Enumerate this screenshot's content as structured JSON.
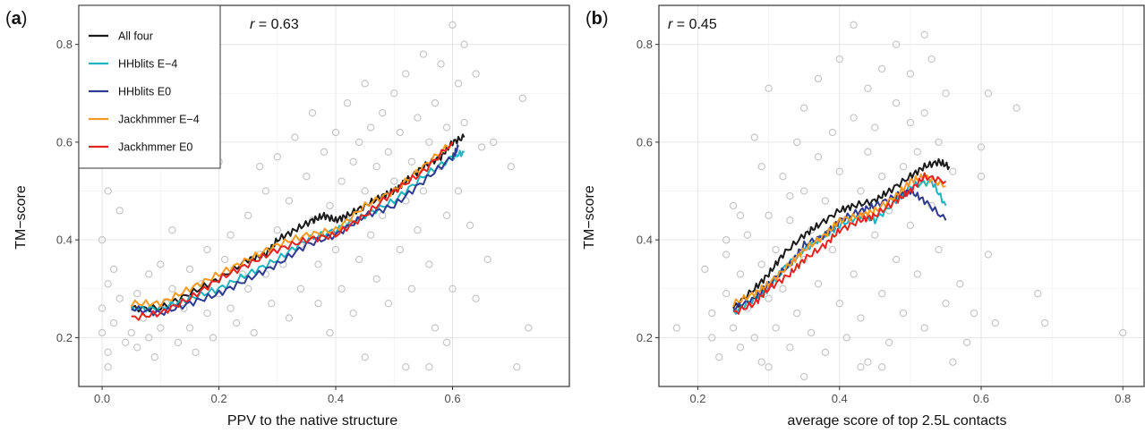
{
  "chart_data": [
    {
      "panel": "(a)",
      "panel_open": "(",
      "panel_letter": "a",
      "panel_close": ")",
      "type": "scatter",
      "r_label": "r = 0.63",
      "r_symbol": "r",
      "r_value": "= 0.63",
      "xlabel": "PPV to the native structure",
      "ylabel": "TM−score",
      "xlim": [
        -0.04,
        0.8
      ],
      "ylim": [
        0.1,
        0.88
      ],
      "xticks": [
        0.0,
        0.2,
        0.4,
        0.6
      ],
      "xtick_labels": [
        "0.0",
        "0.2",
        "0.4",
        "0.6"
      ],
      "yticks": [
        0.2,
        0.4,
        0.6,
        0.8
      ],
      "ytick_labels": [
        "0.2",
        "0.4",
        "0.6",
        "0.8"
      ],
      "grid": true,
      "legend_position": "top-left",
      "legend": [
        "All four",
        "HHblits E−4",
        "HHblits E0",
        "Jackhmmer E−4",
        "Jackhmmer E0"
      ],
      "series": [
        {
          "name": "All four",
          "color": "#1a1a1a",
          "x": [
            0.05,
            0.1,
            0.15,
            0.2,
            0.25,
            0.28,
            0.3,
            0.33,
            0.36,
            0.38,
            0.4,
            0.42,
            0.45,
            0.48,
            0.5,
            0.52,
            0.55,
            0.58,
            0.6,
            0.62
          ],
          "y": [
            0.26,
            0.26,
            0.29,
            0.32,
            0.36,
            0.37,
            0.4,
            0.42,
            0.44,
            0.45,
            0.44,
            0.45,
            0.47,
            0.49,
            0.5,
            0.52,
            0.55,
            0.57,
            0.6,
            0.61
          ]
        },
        {
          "name": "HHblits E−4",
          "color": "#1fb3bd",
          "x": [
            0.05,
            0.1,
            0.15,
            0.2,
            0.25,
            0.3,
            0.35,
            0.4,
            0.45,
            0.5,
            0.55,
            0.6,
            0.62
          ],
          "y": [
            0.26,
            0.26,
            0.28,
            0.3,
            0.33,
            0.36,
            0.4,
            0.42,
            0.45,
            0.48,
            0.53,
            0.57,
            0.58
          ]
        },
        {
          "name": "HHblits E0",
          "color": "#2e3b8f",
          "x": [
            0.05,
            0.1,
            0.15,
            0.2,
            0.25,
            0.3,
            0.35,
            0.4,
            0.45,
            0.5,
            0.55,
            0.6,
            0.61
          ],
          "y": [
            0.26,
            0.25,
            0.27,
            0.29,
            0.32,
            0.35,
            0.39,
            0.41,
            0.45,
            0.47,
            0.52,
            0.57,
            0.59
          ]
        },
        {
          "name": "Jackhmmer E−4",
          "color": "#f59a23",
          "x": [
            0.05,
            0.1,
            0.15,
            0.2,
            0.25,
            0.3,
            0.35,
            0.4,
            0.45,
            0.5,
            0.55,
            0.6
          ],
          "y": [
            0.27,
            0.27,
            0.3,
            0.33,
            0.36,
            0.39,
            0.41,
            0.42,
            0.47,
            0.5,
            0.55,
            0.6
          ]
        },
        {
          "name": "Jackhmmer E0",
          "color": "#e52421",
          "x": [
            0.05,
            0.1,
            0.15,
            0.2,
            0.25,
            0.3,
            0.35,
            0.4,
            0.45,
            0.5,
            0.55,
            0.6
          ],
          "y": [
            0.24,
            0.25,
            0.28,
            0.32,
            0.35,
            0.38,
            0.4,
            0.41,
            0.45,
            0.5,
            0.54,
            0.6
          ]
        }
      ],
      "points": [
        [
          0.0,
          0.4
        ],
        [
          0.0,
          0.26
        ],
        [
          0.01,
          0.17
        ],
        [
          0.0,
          0.21
        ],
        [
          0.01,
          0.31
        ],
        [
          0.02,
          0.34
        ],
        [
          0.02,
          0.23
        ],
        [
          0.03,
          0.28
        ],
        [
          0.01,
          0.14
        ],
        [
          0.04,
          0.19
        ],
        [
          0.05,
          0.21
        ],
        [
          0.06,
          0.18
        ],
        [
          0.07,
          0.24
        ],
        [
          0.08,
          0.2
        ],
        [
          0.09,
          0.16
        ],
        [
          0.1,
          0.22
        ],
        [
          0.11,
          0.27
        ],
        [
          0.12,
          0.3
        ],
        [
          0.13,
          0.19
        ],
        [
          0.14,
          0.26
        ],
        [
          0.15,
          0.34
        ],
        [
          0.15,
          0.22
        ],
        [
          0.16,
          0.17
        ],
        [
          0.17,
          0.31
        ],
        [
          0.18,
          0.38
        ],
        [
          0.18,
          0.25
        ],
        [
          0.19,
          0.2
        ],
        [
          0.2,
          0.29
        ],
        [
          0.21,
          0.36
        ],
        [
          0.22,
          0.41
        ],
        [
          0.22,
          0.26
        ],
        [
          0.23,
          0.23
        ],
        [
          0.24,
          0.33
        ],
        [
          0.25,
          0.45
        ],
        [
          0.25,
          0.3
        ],
        [
          0.26,
          0.21
        ],
        [
          0.27,
          0.37
        ],
        [
          0.28,
          0.5
        ],
        [
          0.28,
          0.33
        ],
        [
          0.29,
          0.27
        ],
        [
          0.3,
          0.42
        ],
        [
          0.3,
          0.57
        ],
        [
          0.31,
          0.35
        ],
        [
          0.32,
          0.24
        ],
        [
          0.32,
          0.48
        ],
        [
          0.33,
          0.61
        ],
        [
          0.34,
          0.39
        ],
        [
          0.34,
          0.3
        ],
        [
          0.35,
          0.53
        ],
        [
          0.36,
          0.66
        ],
        [
          0.36,
          0.44
        ],
        [
          0.37,
          0.27
        ],
        [
          0.37,
          0.35
        ],
        [
          0.38,
          0.58
        ],
        [
          0.39,
          0.47
        ],
        [
          0.39,
          0.21
        ],
        [
          0.4,
          0.62
        ],
        [
          0.4,
          0.38
        ],
        [
          0.41,
          0.52
        ],
        [
          0.41,
          0.3
        ],
        [
          0.42,
          0.68
        ],
        [
          0.42,
          0.44
        ],
        [
          0.43,
          0.56
        ],
        [
          0.43,
          0.25
        ],
        [
          0.44,
          0.6
        ],
        [
          0.44,
          0.36
        ],
        [
          0.45,
          0.5
        ],
        [
          0.45,
          0.72
        ],
        [
          0.46,
          0.41
        ],
        [
          0.46,
          0.63
        ],
        [
          0.47,
          0.55
        ],
        [
          0.47,
          0.32
        ],
        [
          0.48,
          0.66
        ],
        [
          0.48,
          0.45
        ],
        [
          0.49,
          0.58
        ],
        [
          0.49,
          0.27
        ],
        [
          0.5,
          0.7
        ],
        [
          0.5,
          0.52
        ],
        [
          0.51,
          0.38
        ],
        [
          0.51,
          0.62
        ],
        [
          0.52,
          0.74
        ],
        [
          0.52,
          0.48
        ],
        [
          0.53,
          0.56
        ],
        [
          0.53,
          0.3
        ],
        [
          0.54,
          0.65
        ],
        [
          0.54,
          0.42
        ],
        [
          0.55,
          0.78
        ],
        [
          0.55,
          0.5
        ],
        [
          0.56,
          0.6
        ],
        [
          0.56,
          0.35
        ],
        [
          0.57,
          0.68
        ],
        [
          0.57,
          0.22
        ],
        [
          0.58,
          0.55
        ],
        [
          0.58,
          0.76
        ],
        [
          0.59,
          0.45
        ],
        [
          0.59,
          0.63
        ],
        [
          0.6,
          0.84
        ],
        [
          0.6,
          0.3
        ],
        [
          0.61,
          0.72
        ],
        [
          0.61,
          0.5
        ],
        [
          0.62,
          0.8
        ],
        [
          0.62,
          0.64
        ],
        [
          0.63,
          0.43
        ],
        [
          0.64,
          0.74
        ],
        [
          0.64,
          0.28
        ],
        [
          0.65,
          0.59
        ],
        [
          0.66,
          0.36
        ],
        [
          0.67,
          0.6
        ],
        [
          0.7,
          0.55
        ],
        [
          0.71,
          0.14
        ],
        [
          0.72,
          0.69
        ],
        [
          0.73,
          0.22
        ],
        [
          0.56,
          0.14
        ],
        [
          0.59,
          0.19
        ],
        [
          0.52,
          0.14
        ],
        [
          0.45,
          0.16
        ],
        [
          0.08,
          0.33
        ],
        [
          0.1,
          0.35
        ],
        [
          0.06,
          0.29
        ],
        [
          0.03,
          0.46
        ],
        [
          0.01,
          0.5
        ],
        [
          0.2,
          0.56
        ],
        [
          0.27,
          0.55
        ],
        [
          0.12,
          0.42
        ]
      ]
    },
    {
      "panel": "(b)",
      "panel_open": "(",
      "panel_letter": "b",
      "panel_close": ")",
      "type": "scatter",
      "r_label": "r = 0.45",
      "r_symbol": "r",
      "r_value": "= 0.45",
      "xlabel": "average score of top 2.5L contacts",
      "ylabel": "TM−score",
      "xlim": [
        0.145,
        0.83
      ],
      "ylim": [
        0.1,
        0.88
      ],
      "xticks": [
        0.2,
        0.4,
        0.6,
        0.8
      ],
      "xtick_labels": [
        "0.2",
        "0.4",
        "0.6",
        "0.8"
      ],
      "yticks": [
        0.2,
        0.4,
        0.6,
        0.8
      ],
      "ytick_labels": [
        "0.2",
        "0.4",
        "0.6",
        "0.8"
      ],
      "grid": true,
      "series": [
        {
          "name": "All four",
          "color": "#1a1a1a",
          "x": [
            0.25,
            0.28,
            0.3,
            0.32,
            0.35,
            0.37,
            0.4,
            0.42,
            0.45,
            0.47,
            0.5,
            0.52,
            0.54,
            0.555
          ],
          "y": [
            0.26,
            0.3,
            0.33,
            0.37,
            0.41,
            0.43,
            0.46,
            0.47,
            0.48,
            0.5,
            0.53,
            0.55,
            0.56,
            0.55
          ]
        },
        {
          "name": "HHblits E−4",
          "color": "#1fb3bd",
          "x": [
            0.25,
            0.28,
            0.3,
            0.32,
            0.35,
            0.38,
            0.4,
            0.43,
            0.45,
            0.48,
            0.5,
            0.53,
            0.55
          ],
          "y": [
            0.25,
            0.28,
            0.3,
            0.34,
            0.38,
            0.41,
            0.43,
            0.45,
            0.44,
            0.48,
            0.51,
            0.52,
            0.47
          ]
        },
        {
          "name": "HHblits E0",
          "color": "#2e3b8f",
          "x": [
            0.25,
            0.28,
            0.3,
            0.33,
            0.35,
            0.38,
            0.4,
            0.43,
            0.45,
            0.48,
            0.5,
            0.52,
            0.55
          ],
          "y": [
            0.26,
            0.28,
            0.31,
            0.35,
            0.39,
            0.41,
            0.44,
            0.46,
            0.47,
            0.49,
            0.5,
            0.48,
            0.44
          ]
        },
        {
          "name": "Jackhmmer E−4",
          "color": "#f59a23",
          "x": [
            0.25,
            0.28,
            0.3,
            0.33,
            0.35,
            0.38,
            0.4,
            0.43,
            0.45,
            0.48,
            0.5,
            0.52,
            0.55
          ],
          "y": [
            0.27,
            0.29,
            0.31,
            0.35,
            0.38,
            0.41,
            0.44,
            0.45,
            0.46,
            0.49,
            0.52,
            0.53,
            0.51
          ]
        },
        {
          "name": "Jackhmmer E0",
          "color": "#e52421",
          "x": [
            0.25,
            0.28,
            0.3,
            0.33,
            0.35,
            0.38,
            0.4,
            0.43,
            0.45,
            0.48,
            0.5,
            0.52,
            0.55
          ],
          "y": [
            0.25,
            0.27,
            0.3,
            0.33,
            0.36,
            0.39,
            0.42,
            0.44,
            0.45,
            0.48,
            0.5,
            0.53,
            0.52
          ]
        }
      ],
      "points": [
        [
          0.17,
          0.22
        ],
        [
          0.21,
          0.34
        ],
        [
          0.22,
          0.25
        ],
        [
          0.22,
          0.2
        ],
        [
          0.23,
          0.16
        ],
        [
          0.24,
          0.37
        ],
        [
          0.24,
          0.29
        ],
        [
          0.25,
          0.22
        ],
        [
          0.25,
          0.47
        ],
        [
          0.26,
          0.18
        ],
        [
          0.26,
          0.33
        ],
        [
          0.27,
          0.26
        ],
        [
          0.27,
          0.41
        ],
        [
          0.28,
          0.2
        ],
        [
          0.28,
          0.61
        ],
        [
          0.29,
          0.35
        ],
        [
          0.29,
          0.15
        ],
        [
          0.3,
          0.28
        ],
        [
          0.3,
          0.45
        ],
        [
          0.3,
          0.71
        ],
        [
          0.31,
          0.22
        ],
        [
          0.31,
          0.38
        ],
        [
          0.32,
          0.53
        ],
        [
          0.32,
          0.3
        ],
        [
          0.33,
          0.18
        ],
        [
          0.33,
          0.44
        ],
        [
          0.34,
          0.6
        ],
        [
          0.34,
          0.25
        ],
        [
          0.35,
          0.36
        ],
        [
          0.35,
          0.5
        ],
        [
          0.35,
          0.67
        ],
        [
          0.36,
          0.21
        ],
        [
          0.36,
          0.42
        ],
        [
          0.37,
          0.57
        ],
        [
          0.37,
          0.31
        ],
        [
          0.37,
          0.73
        ],
        [
          0.38,
          0.48
        ],
        [
          0.38,
          0.17
        ],
        [
          0.39,
          0.62
        ],
        [
          0.39,
          0.38
        ],
        [
          0.4,
          0.27
        ],
        [
          0.4,
          0.54
        ],
        [
          0.4,
          0.77
        ],
        [
          0.41,
          0.44
        ],
        [
          0.41,
          0.2
        ],
        [
          0.42,
          0.65
        ],
        [
          0.42,
          0.33
        ],
        [
          0.42,
          0.84
        ],
        [
          0.43,
          0.5
        ],
        [
          0.43,
          0.24
        ],
        [
          0.44,
          0.58
        ],
        [
          0.44,
          0.71
        ],
        [
          0.44,
          0.15
        ],
        [
          0.45,
          0.41
        ],
        [
          0.45,
          0.63
        ],
        [
          0.46,
          0.29
        ],
        [
          0.46,
          0.53
        ],
        [
          0.46,
          0.75
        ],
        [
          0.47,
          0.19
        ],
        [
          0.47,
          0.46
        ],
        [
          0.48,
          0.68
        ],
        [
          0.48,
          0.36
        ],
        [
          0.48,
          0.8
        ],
        [
          0.49,
          0.55
        ],
        [
          0.49,
          0.25
        ],
        [
          0.5,
          0.64
        ],
        [
          0.5,
          0.43
        ],
        [
          0.5,
          0.74
        ],
        [
          0.51,
          0.33
        ],
        [
          0.51,
          0.58
        ],
        [
          0.52,
          0.82
        ],
        [
          0.52,
          0.22
        ],
        [
          0.52,
          0.66
        ],
        [
          0.53,
          0.47
        ],
        [
          0.53,
          0.77
        ],
        [
          0.54,
          0.38
        ],
        [
          0.54,
          0.6
        ],
        [
          0.55,
          0.27
        ],
        [
          0.55,
          0.7
        ],
        [
          0.56,
          0.15
        ],
        [
          0.57,
          0.31
        ],
        [
          0.58,
          0.19
        ],
        [
          0.59,
          0.25
        ],
        [
          0.6,
          0.53
        ],
        [
          0.61,
          0.7
        ],
        [
          0.61,
          0.37
        ],
        [
          0.62,
          0.23
        ],
        [
          0.65,
          0.67
        ],
        [
          0.68,
          0.29
        ],
        [
          0.69,
          0.23
        ],
        [
          0.8,
          0.21
        ],
        [
          0.6,
          0.59
        ],
        [
          0.56,
          0.54
        ],
        [
          0.46,
          0.14
        ],
        [
          0.43,
          0.14
        ],
        [
          0.35,
          0.12
        ],
        [
          0.3,
          0.14
        ],
        [
          0.29,
          0.55
        ],
        [
          0.33,
          0.49
        ],
        [
          0.26,
          0.45
        ],
        [
          0.24,
          0.4
        ]
      ]
    }
  ]
}
